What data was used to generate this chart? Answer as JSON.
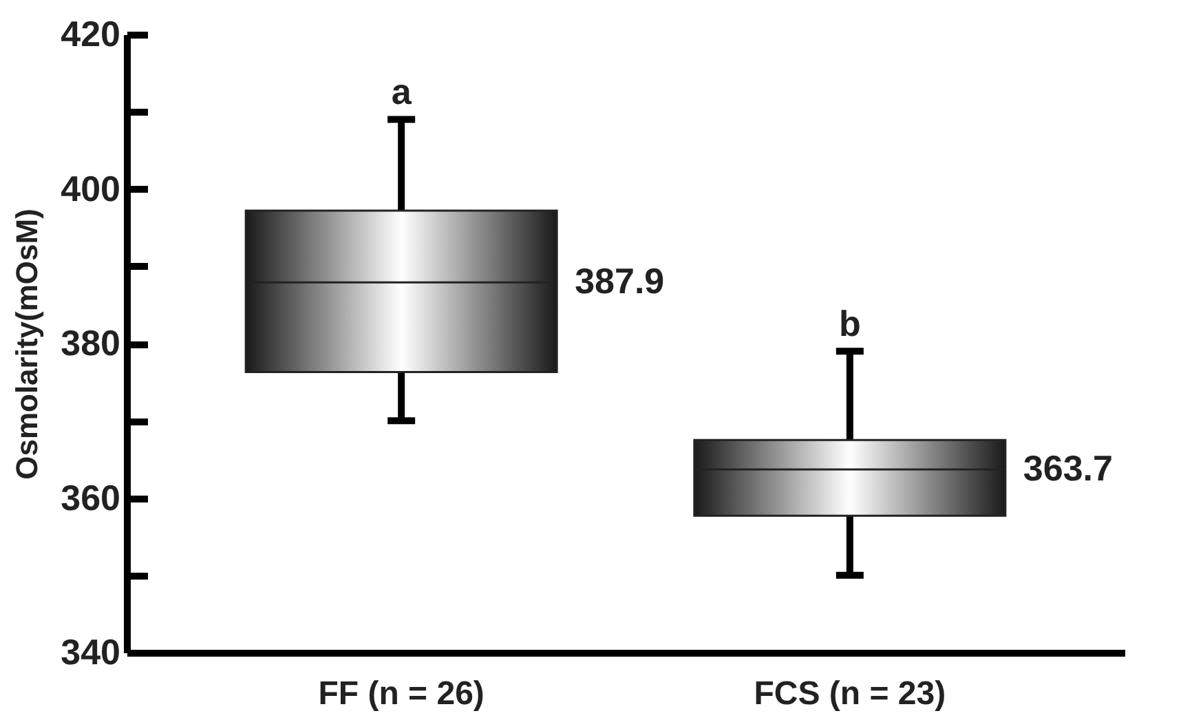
{
  "chart_data": {
    "type": "box",
    "ylabel": "Osmolarity(mOsM)",
    "categories": [
      "FF (n = 26)",
      "FCS (n = 23)"
    ],
    "boxes": [
      {
        "low": 370,
        "q1": 376.3,
        "median": 387.9,
        "q3": 397.2,
        "high": 409
      },
      {
        "low": 350,
        "q1": 357.7,
        "median": 363.7,
        "q3": 367.5,
        "high": 379
      }
    ],
    "value_labels": [
      "387.9",
      "363.7"
    ],
    "ylim": [
      340,
      420
    ],
    "yticks": [
      340,
      {
        "value": 350,
        "label": null
      },
      360,
      {
        "value": 370,
        "label": null
      },
      380,
      {
        "value": 390,
        "label": null
      },
      400,
      {
        "value": 410,
        "label": null
      },
      420
    ],
    "annotations": [
      "a",
      "b"
    ],
    "grid": false
  }
}
